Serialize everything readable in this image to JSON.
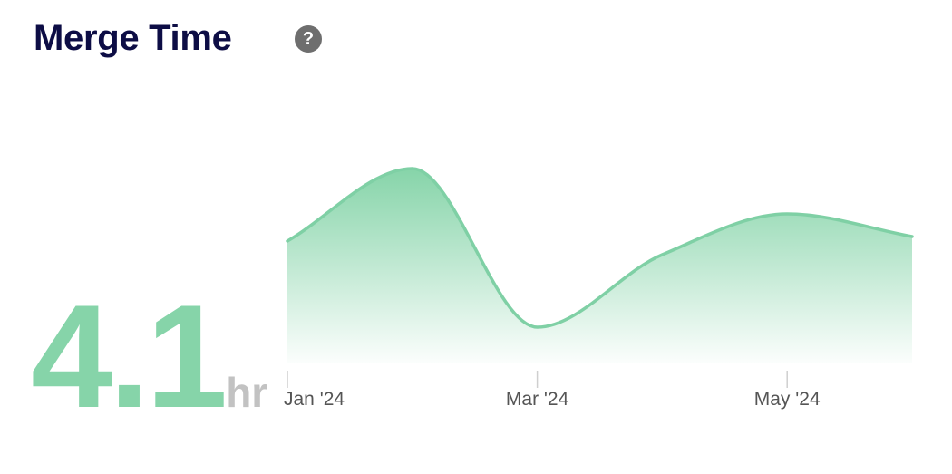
{
  "header": {
    "title": "Merge Time",
    "help_glyph": "?"
  },
  "summary": {
    "value": "4.1",
    "unit": "hr"
  },
  "colors": {
    "line": "#7fd0a5",
    "fill": "#86d4a9",
    "value": "#86d4a9",
    "title": "#0d0d45"
  },
  "chart_data": {
    "type": "area",
    "title": "",
    "xlabel": "",
    "ylabel": "",
    "x": [
      "2024-01",
      "2024-02",
      "2024-03",
      "2024-04",
      "2024-05",
      "2024-06"
    ],
    "series": [
      {
        "values": [
          4.7,
          6.3,
          2.8,
          4.4,
          5.3,
          4.8
        ]
      }
    ],
    "ylim": [
      2.0,
      7.0
    ],
    "x_tick_labels": [
      "Jan '24",
      "Mar '24",
      "May '24"
    ],
    "grid": false,
    "legend": "none"
  }
}
